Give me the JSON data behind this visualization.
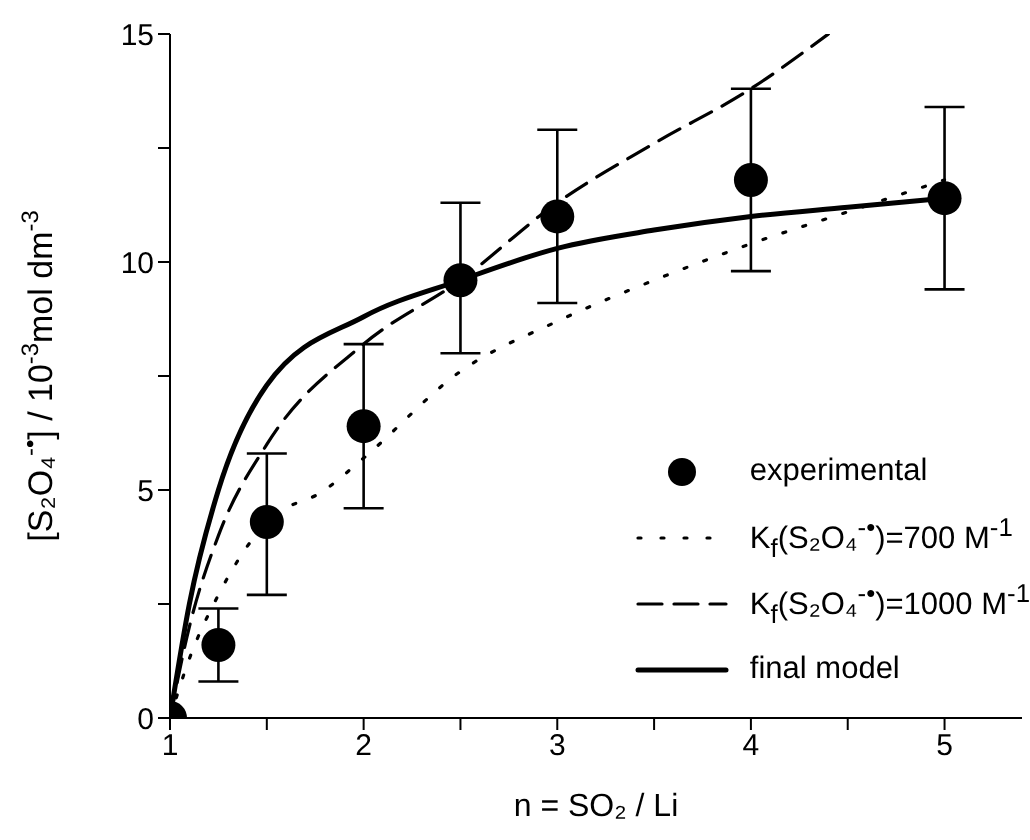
{
  "chart_data": {
    "type": "line",
    "xlabel": "n = SO₂ / Li",
    "ylabel": "[S₂O₄$^{-•}$] / 10$^{-3}$mol dm$^{-3}$",
    "xlim": [
      1,
      5.4
    ],
    "xticks": [
      1,
      {
        "value": 1.5,
        "label": null
      },
      2,
      {
        "value": 2.5,
        "label": null
      },
      3,
      {
        "value": 3.5,
        "label": null
      },
      4,
      {
        "value": 4.5,
        "label": null
      },
      5
    ],
    "ylim": [
      0,
      15
    ],
    "yticks": [
      0,
      {
        "value": 2.5,
        "label": null
      },
      5,
      {
        "value": 7.5,
        "label": null
      },
      10,
      {
        "value": 12.5,
        "label": null
      },
      15
    ],
    "grid": false,
    "legend": "bottom right",
    "series": [
      {
        "name": "experimental",
        "type": "scatter",
        "marker": "circle",
        "color": "#000000",
        "x": [
          1,
          1.25,
          1.5,
          2,
          2.5,
          3,
          4,
          5
        ],
        "values": [
          0,
          1.6,
          4.3,
          6.4,
          9.6,
          11.0,
          11.8,
          11.4
        ],
        "errors": [
          null,
          [
            0.8,
            2.4
          ],
          [
            2.7,
            5.8
          ],
          [
            4.6,
            8.2
          ],
          [
            8.0,
            11.3
          ],
          [
            9.1,
            12.9
          ],
          [
            9.8,
            13.8
          ],
          [
            9.4,
            13.4
          ]
        ]
      },
      {
        "name": "K$_{f}$(S₂O₄$^{-•}$)=700 M$^{-1}$",
        "line_style": "dotted",
        "marker": "none",
        "color": "#000000",
        "x": [
          1,
          1.1,
          1.25,
          1.5,
          1.8,
          2,
          2.5,
          3,
          3.5,
          4,
          4.5,
          5
        ],
        "values": [
          0,
          1.3,
          2.7,
          4.3,
          5.0,
          5.7,
          7.6,
          8.7,
          9.6,
          10.4,
          11.1,
          11.8
        ]
      },
      {
        "name": "K$_{f}$(S₂O₄$^{-•}$)=1000 M$^{-1}$",
        "line_style": "dashed",
        "marker": "none",
        "color": "#000000",
        "x": [
          1,
          1.1,
          1.25,
          1.5,
          2,
          2.5,
          3,
          3.5,
          4,
          4.4
        ],
        "values": [
          0,
          2.0,
          4.0,
          6.0,
          8.2,
          9.6,
          11.3,
          12.6,
          13.8,
          15
        ]
      },
      {
        "name": "final model",
        "line_style": "solid",
        "marker": "none",
        "color": "#000000",
        "x": [
          1,
          1.1,
          1.25,
          1.5,
          2,
          2.5,
          3,
          3.5,
          4,
          4.5,
          5
        ],
        "values": [
          0,
          2.5,
          5.0,
          7.3,
          8.8,
          9.6,
          10.3,
          10.7,
          11.0,
          11.2,
          11.4
        ]
      }
    ]
  }
}
